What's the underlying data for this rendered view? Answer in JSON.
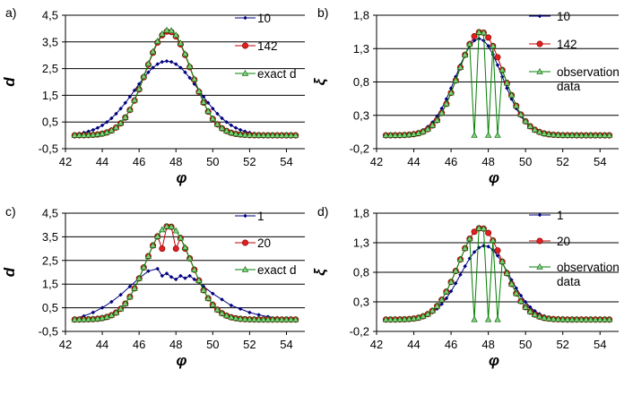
{
  "chart_data": [
    {
      "panel": "a)",
      "type": "line",
      "xlabel": "φ",
      "ylabel": "d",
      "xlim": [
        42,
        55
      ],
      "ylim": [
        -0.5,
        4.5
      ],
      "xticks": [
        "42",
        "44",
        "46",
        "48",
        "50",
        "52",
        "54"
      ],
      "yticks": [
        "-0,5",
        "0,5",
        "1,5",
        "2,5",
        "3,5",
        "4,5"
      ],
      "ytick_values": [
        -0.5,
        0.5,
        1.5,
        2.5,
        3.5,
        4.5
      ],
      "gridlines": [
        0.5,
        1.5,
        2.5,
        3.5,
        4.5
      ],
      "series": [
        {
          "name": "10",
          "color": "#000080",
          "marker": "diamond",
          "model": "gauss",
          "amp": 2.78,
          "center": 47.5,
          "width": 1.75,
          "base": 0.0
        },
        {
          "name": "142",
          "color": "#c00000",
          "marker": "circle",
          "model": "gauss",
          "amp": 3.9,
          "center": 47.6,
          "width": 1.25,
          "base": 0.0
        },
        {
          "name": "exact d",
          "color": "#008000",
          "marker": "triangle",
          "model": "gauss",
          "amp": 3.95,
          "center": 47.6,
          "width": 1.25,
          "base": 0.0
        }
      ]
    },
    {
      "panel": "b)",
      "type": "line",
      "xlabel": "φ",
      "ylabel": "ξ",
      "xlim": [
        42,
        55
      ],
      "ylim": [
        -0.2,
        1.8
      ],
      "xticks": [
        "42",
        "44",
        "46",
        "48",
        "50",
        "52",
        "54"
      ],
      "yticks": [
        "-0,2",
        "0,3",
        "0,8",
        "1,3",
        "1,8"
      ],
      "ytick_values": [
        -0.2,
        0.3,
        0.8,
        1.3,
        1.8
      ],
      "gridlines": [
        0.3,
        0.8,
        1.3,
        1.8
      ],
      "series": [
        {
          "name": "10",
          "color": "#000080",
          "marker": "diamond",
          "model": "gauss",
          "amp": 1.45,
          "center": 47.5,
          "width": 1.25,
          "base": 0.0
        },
        {
          "name": "142",
          "color": "#c00000",
          "marker": "circle",
          "model": "gauss",
          "amp": 1.55,
          "center": 47.6,
          "width": 1.2,
          "base": 0.0
        },
        {
          "name": "observation data",
          "color": "#008000",
          "marker": "triangle",
          "model": "gauss",
          "amp": 1.55,
          "center": 47.6,
          "width": 1.2,
          "base": 0.0,
          "zero_at": [
            47.25,
            48.0,
            48.5
          ]
        }
      ]
    },
    {
      "panel": "c)",
      "type": "line",
      "xlabel": "φ",
      "ylabel": "d",
      "xlim": [
        42,
        55
      ],
      "ylim": [
        -0.5,
        4.5
      ],
      "xticks": [
        "42",
        "44",
        "46",
        "48",
        "50",
        "52",
        "54"
      ],
      "yticks": [
        "-0,5",
        "0,5",
        "1,5",
        "2,5",
        "3,5",
        "4,5"
      ],
      "ytick_values": [
        -0.5,
        0.5,
        1.5,
        2.5,
        3.5,
        4.5
      ],
      "gridlines": [
        0.5,
        1.5,
        2.5,
        3.5,
        4.5
      ],
      "series": [
        {
          "name": "1",
          "color": "#000080",
          "marker": "diamond",
          "model": "points",
          "x": [
            42.5,
            43,
            43.5,
            44,
            44.5,
            45,
            45.5,
            46,
            46.5,
            47,
            47.25,
            47.5,
            47.75,
            48,
            48.25,
            48.5,
            48.75,
            49,
            49.5,
            50,
            50.5,
            51,
            51.5,
            52,
            52.5,
            53,
            53.5,
            54,
            54.5
          ],
          "y": [
            0.05,
            0.15,
            0.3,
            0.5,
            0.75,
            1.05,
            1.4,
            1.75,
            2.05,
            2.15,
            1.85,
            1.95,
            1.8,
            1.7,
            1.85,
            1.75,
            1.85,
            1.7,
            1.4,
            1.1,
            0.85,
            0.6,
            0.45,
            0.3,
            0.2,
            0.12,
            0.08,
            0.05,
            0.03
          ]
        },
        {
          "name": "20",
          "color": "#c00000",
          "marker": "circle",
          "model": "gauss",
          "amp": 3.95,
          "center": 47.6,
          "width": 1.25,
          "base": 0.0,
          "dip_at": [
            47.25,
            48.0,
            48.5
          ],
          "dip_value": 3.0
        },
        {
          "name": "exact d",
          "color": "#008000",
          "marker": "triangle",
          "model": "gauss",
          "amp": 3.95,
          "center": 47.6,
          "width": 1.25,
          "base": 0.0
        }
      ]
    },
    {
      "panel": "d)",
      "type": "line",
      "xlabel": "φ",
      "ylabel": "ξ",
      "xlim": [
        42,
        55
      ],
      "ylim": [
        -0.2,
        1.8
      ],
      "xticks": [
        "42",
        "44",
        "46",
        "48",
        "50",
        "52",
        "54"
      ],
      "yticks": [
        "-0,2",
        "0,3",
        "0,8",
        "1,3",
        "1,8"
      ],
      "ytick_values": [
        -0.2,
        0.3,
        0.8,
        1.3,
        1.8
      ],
      "gridlines": [
        0.3,
        0.8,
        1.3,
        1.8
      ],
      "series": [
        {
          "name": "1",
          "color": "#000080",
          "marker": "diamond",
          "model": "gauss",
          "amp": 1.25,
          "center": 47.8,
          "width": 1.3,
          "base": 0.0
        },
        {
          "name": "20",
          "color": "#c00000",
          "marker": "circle",
          "model": "gauss",
          "amp": 1.55,
          "center": 47.6,
          "width": 1.2,
          "base": 0.0
        },
        {
          "name": "observation data",
          "color": "#008000",
          "marker": "triangle",
          "model": "gauss",
          "amp": 1.55,
          "center": 47.6,
          "width": 1.2,
          "base": 0.0,
          "zero_at": [
            47.25,
            48.0,
            48.5
          ]
        }
      ]
    }
  ],
  "legend_lines": {
    "observation data": [
      "observation",
      "data"
    ]
  }
}
